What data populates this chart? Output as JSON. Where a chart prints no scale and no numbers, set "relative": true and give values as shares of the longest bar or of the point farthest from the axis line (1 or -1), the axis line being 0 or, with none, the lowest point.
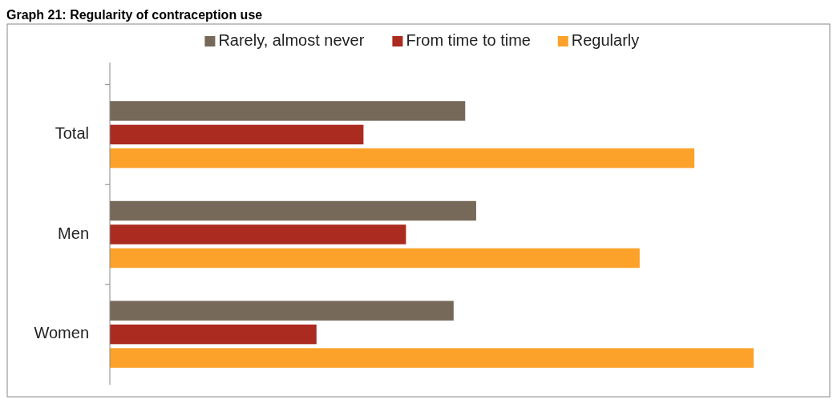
{
  "chart_data": {
    "type": "bar",
    "title": "Graph 21: Regularity of contraception use",
    "orientation": "horizontal",
    "relative": true,
    "legend": "top",
    "categories": [
      "Total",
      "Men",
      "Women"
    ],
    "series": [
      {
        "name": "Rarely, almost never",
        "color": "#76695a",
        "values": [
          0.552,
          0.569,
          0.534
        ]
      },
      {
        "name": "From time to time",
        "color": "#ab2b20",
        "values": [
          0.394,
          0.46,
          0.321
        ]
      },
      {
        "name": "Regularly",
        "color": "#fca22a",
        "values": [
          0.908,
          0.823,
          1
        ]
      }
    ]
  }
}
